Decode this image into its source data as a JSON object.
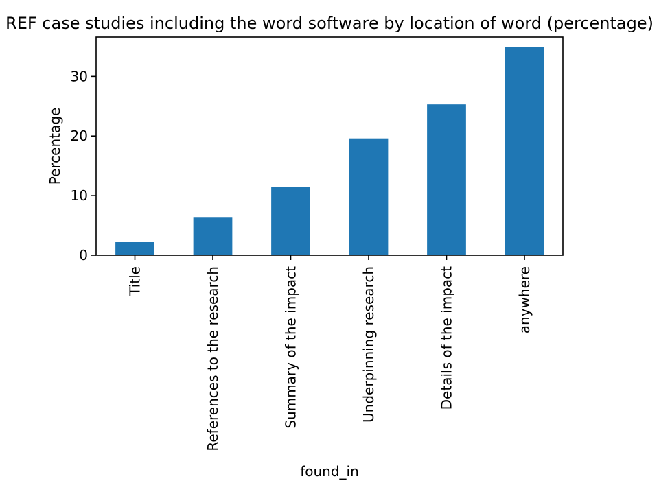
{
  "chart_data": {
    "type": "bar",
    "title": "REF case studies including the word software by location of word (percentage)",
    "xlabel": "found_in",
    "ylabel": "Percentage",
    "categories": [
      "Title",
      "References to the research",
      "Summary of the impact",
      "Underpinning research",
      "Details of the impact",
      "anywhere"
    ],
    "values": [
      2.2,
      6.3,
      11.4,
      19.6,
      25.3,
      34.9
    ],
    "ylim": [
      0,
      36.6
    ],
    "yticks": [
      0,
      10,
      20,
      30
    ],
    "bar_color": "#1f77b4",
    "grid": false,
    "legend": "none"
  }
}
